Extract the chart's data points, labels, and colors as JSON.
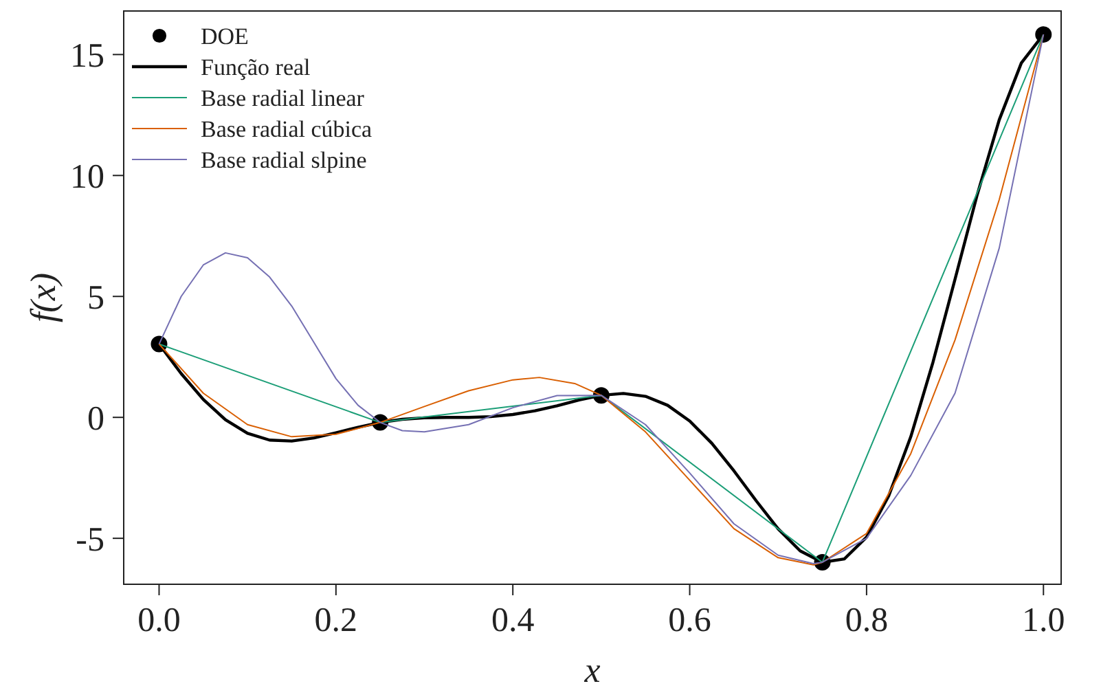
{
  "chart_data": {
    "type": "line",
    "xlabel": "x",
    "ylabel": "f(x)",
    "xlim": [
      -0.04,
      1.02
    ],
    "ylim": [
      -6.9,
      16.8
    ],
    "xticks": [
      {
        "value": 0,
        "label": "0.0"
      },
      0.2,
      0.4,
      0.6,
      0.8,
      {
        "value": 1,
        "label": "1.0"
      }
    ],
    "yticks": [
      -5,
      0,
      5,
      10,
      15
    ],
    "grid": false,
    "legend": "top left",
    "line_style": "solid",
    "series": [
      {
        "name": "DOE",
        "type": "scatter",
        "marker": "circle",
        "color": "#000000",
        "x": [
          0,
          0.25,
          0.5,
          0.75,
          1
        ],
        "values": [
          3.03,
          -0.21,
          0.91,
          -5.99,
          15.83
        ]
      },
      {
        "name": "Função real",
        "color": "#000000",
        "x": [
          0,
          0.025,
          0.05,
          0.075,
          0.1,
          0.125,
          0.15,
          0.175,
          0.2,
          0.225,
          0.25,
          0.275,
          0.3,
          0.325,
          0.35,
          0.375,
          0.4,
          0.425,
          0.45,
          0.475,
          0.5,
          0.525,
          0.55,
          0.575,
          0.6,
          0.625,
          0.65,
          0.675,
          0.7,
          0.725,
          0.75,
          0.775,
          0.8,
          0.825,
          0.85,
          0.875,
          0.9,
          0.925,
          0.95,
          0.975,
          1
        ],
        "values": [
          3.03,
          1.81,
          0.74,
          -0.1,
          -0.66,
          -0.94,
          -0.98,
          -0.85,
          -0.64,
          -0.41,
          -0.21,
          -0.08,
          -0.02,
          0,
          0,
          0.03,
          0.12,
          0.27,
          0.48,
          0.72,
          0.91,
          0.99,
          0.87,
          0.5,
          -0.15,
          -1.07,
          -2.21,
          -3.44,
          -4.61,
          -5.52,
          -5.99,
          -5.85,
          -4.95,
          -3.25,
          -0.8,
          2.27,
          5.71,
          9.19,
          12.3,
          14.65,
          15.83
        ]
      },
      {
        "name": "Base radial linear",
        "color": "#1b9e77",
        "x": [
          0,
          0.25,
          0.5,
          0.75,
          1
        ],
        "values": [
          3.03,
          -0.21,
          0.91,
          -5.99,
          15.83
        ]
      },
      {
        "name": "Base radial cúbica",
        "color": "#d95f02",
        "x": [
          0,
          0.05,
          0.1,
          0.15,
          0.2,
          0.25,
          0.3,
          0.35,
          0.4,
          0.43,
          0.47,
          0.5,
          0.55,
          0.6,
          0.65,
          0.7,
          0.74,
          0.75,
          0.8,
          0.85,
          0.9,
          0.95,
          1
        ],
        "values": [
          3.03,
          1.0,
          -0.3,
          -0.8,
          -0.7,
          -0.21,
          0.45,
          1.1,
          1.55,
          1.65,
          1.4,
          0.91,
          -0.6,
          -2.6,
          -4.6,
          -5.8,
          -6.1,
          -5.99,
          -4.8,
          -1.5,
          3.2,
          9.0,
          15.83
        ]
      },
      {
        "name": "Base radial slpine",
        "color": "#7570b3",
        "x": [
          0,
          0.025,
          0.05,
          0.075,
          0.1,
          0.125,
          0.15,
          0.175,
          0.2,
          0.225,
          0.25,
          0.275,
          0.3,
          0.35,
          0.4,
          0.45,
          0.5,
          0.55,
          0.6,
          0.65,
          0.7,
          0.74,
          0.75,
          0.8,
          0.85,
          0.9,
          0.95,
          1
        ],
        "values": [
          3.03,
          5.0,
          6.3,
          6.8,
          6.6,
          5.8,
          4.6,
          3.1,
          1.6,
          0.5,
          -0.21,
          -0.55,
          -0.6,
          -0.3,
          0.4,
          0.9,
          0.91,
          -0.3,
          -2.3,
          -4.4,
          -5.7,
          -6.05,
          -5.99,
          -5.0,
          -2.4,
          1.0,
          7.0,
          15.83
        ]
      }
    ]
  }
}
